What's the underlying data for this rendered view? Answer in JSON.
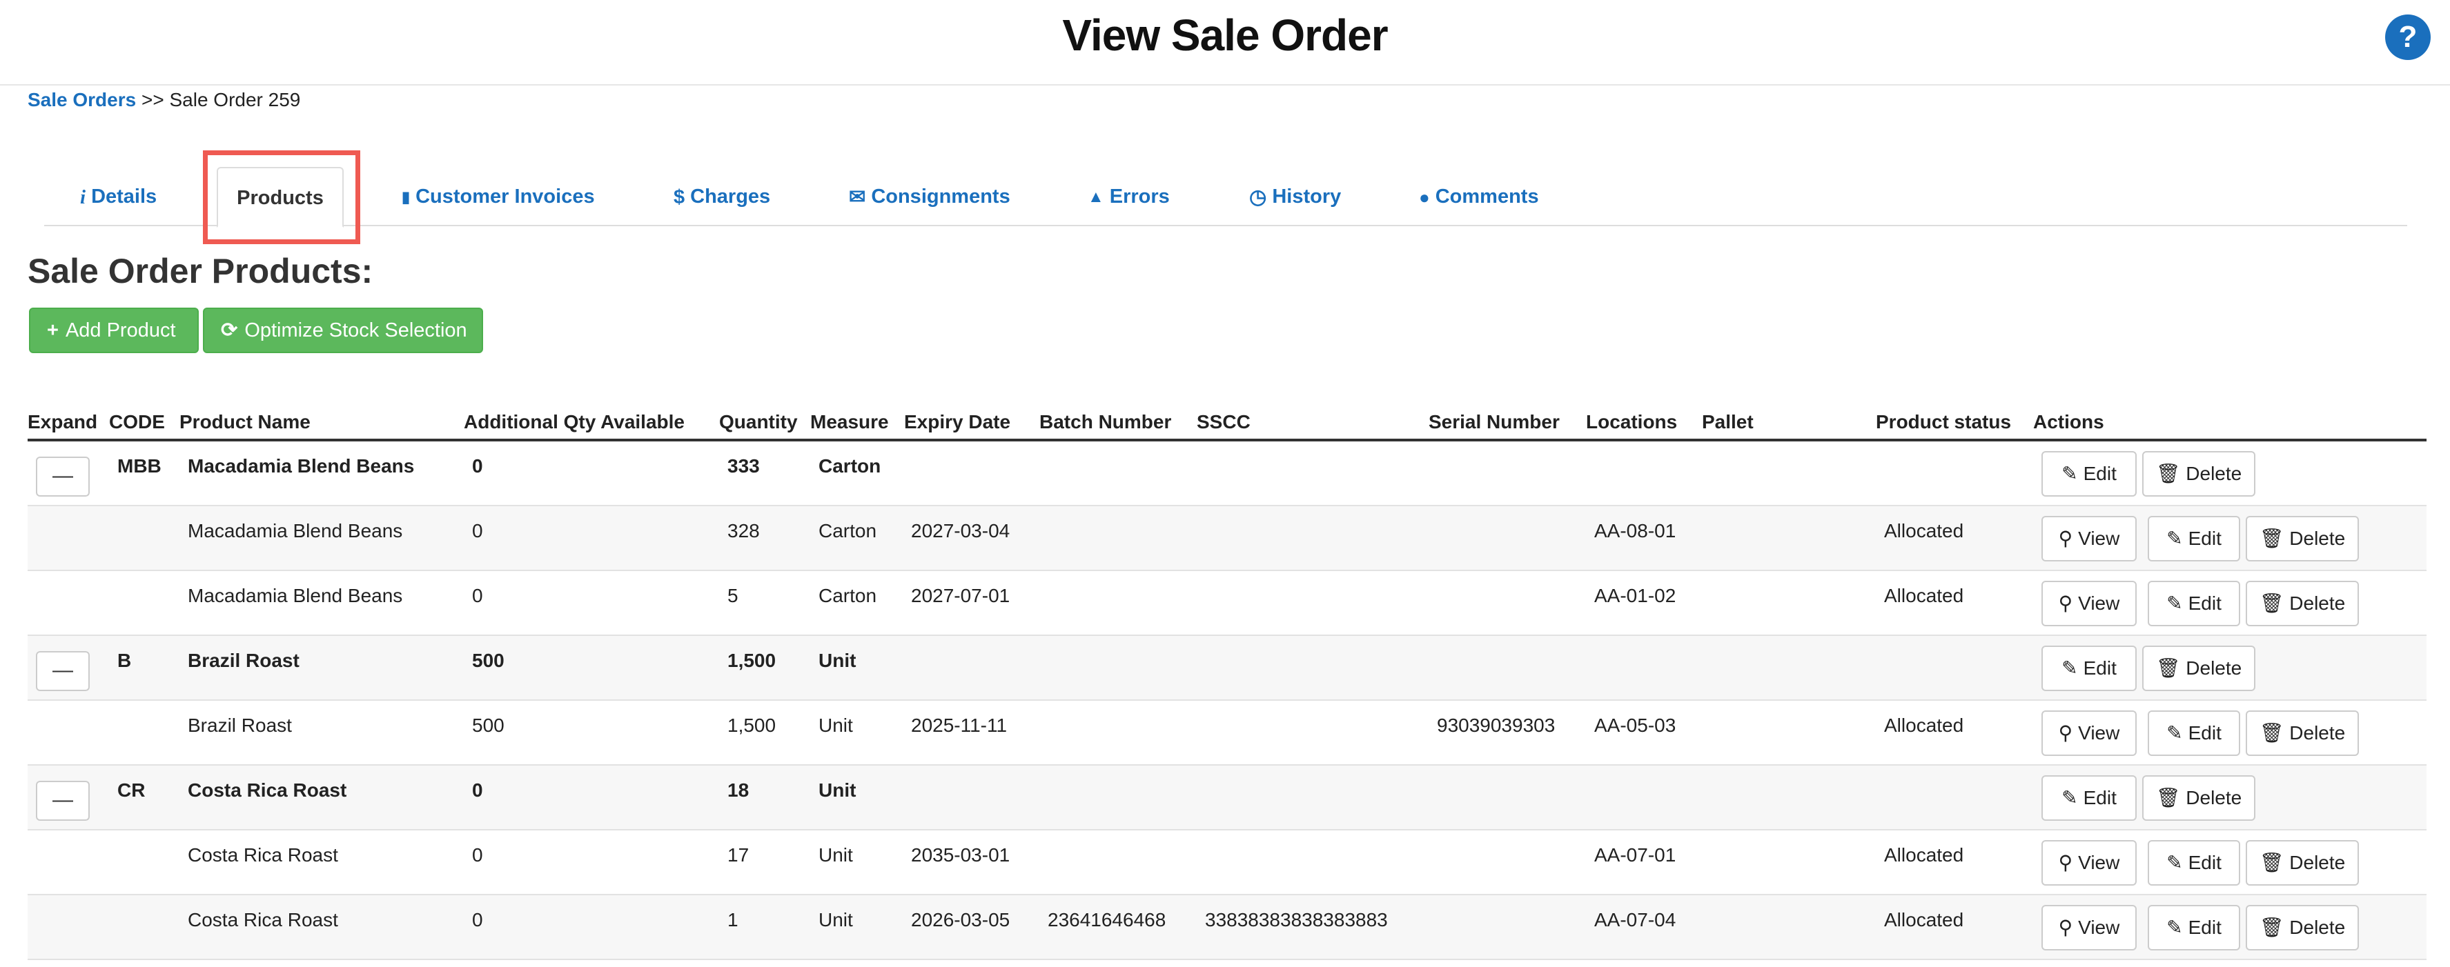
{
  "header": {
    "title": "View Sale Order",
    "help_label": "?"
  },
  "breadcrumb": {
    "link": "Sale Orders",
    "separator": ">>",
    "current": "Sale Order 259"
  },
  "tabs": [
    {
      "label": "Details",
      "icon": "info-icon",
      "glyph": "i"
    },
    {
      "label": "Products",
      "icon": "",
      "glyph": ""
    },
    {
      "label": "Customer Invoices",
      "icon": "file-icon",
      "glyph": "▮"
    },
    {
      "label": "Charges",
      "icon": "dollar-icon",
      "glyph": "$"
    },
    {
      "label": "Consignments",
      "icon": "envelope-icon",
      "glyph": "✉"
    },
    {
      "label": "Errors",
      "icon": "warning-icon",
      "glyph": "▲"
    },
    {
      "label": "History",
      "icon": "clock-icon",
      "glyph": "◷"
    },
    {
      "label": "Comments",
      "icon": "comment-icon",
      "glyph": "●"
    }
  ],
  "section_title": "Sale Order Products:",
  "toolbar": {
    "add_label": "Add Product",
    "add_icon": "plus-icon",
    "add_glyph": "+",
    "optimize_label": "Optimize Stock Selection",
    "optimize_icon": "refresh-icon",
    "optimize_glyph": "⟳"
  },
  "table": {
    "columns": [
      "Expand",
      "CODE",
      "Product Name",
      "Additional Qty Available",
      "Quantity",
      "Measure",
      "Expiry Date",
      "Batch Number",
      "SSCC",
      "Serial Number",
      "Locations",
      "Pallet",
      "Product status",
      "Actions"
    ],
    "expand_glyph": "—",
    "actions": {
      "view": "View",
      "edit": "Edit",
      "delete": "Delete",
      "view_icon": "search-icon",
      "edit_icon": "pencil-icon",
      "delete_icon": "trash-icon",
      "view_glyph": "⚲",
      "edit_glyph": "✎",
      "delete_glyph": "🗑"
    },
    "rows": [
      {
        "group": true,
        "code": "MBB",
        "name": "Macadamia Blend Beans",
        "addl": "0",
        "qty": "333",
        "measure": "Carton",
        "expiry": "",
        "batch": "",
        "sscc": "",
        "serial": "",
        "location": "",
        "pallet": "",
        "status": ""
      },
      {
        "group": false,
        "code": "",
        "name": "Macadamia Blend Beans",
        "addl": "0",
        "qty": "328",
        "measure": "Carton",
        "expiry": "2027-03-04",
        "batch": "",
        "sscc": "",
        "serial": "",
        "location": "AA-08-01",
        "pallet": "",
        "status": "Allocated"
      },
      {
        "group": false,
        "code": "",
        "name": "Macadamia Blend Beans",
        "addl": "0",
        "qty": "5",
        "measure": "Carton",
        "expiry": "2027-07-01",
        "batch": "",
        "sscc": "",
        "serial": "",
        "location": "AA-01-02",
        "pallet": "",
        "status": "Allocated"
      },
      {
        "group": true,
        "code": "B",
        "name": "Brazil Roast",
        "addl": "500",
        "qty": "1,500",
        "measure": "Unit",
        "expiry": "",
        "batch": "",
        "sscc": "",
        "serial": "",
        "location": "",
        "pallet": "",
        "status": ""
      },
      {
        "group": false,
        "code": "",
        "name": "Brazil Roast",
        "addl": "500",
        "qty": "1,500",
        "measure": "Unit",
        "expiry": "2025-11-11",
        "batch": "",
        "sscc": "",
        "serial": "93039039303",
        "location": "AA-05-03",
        "pallet": "",
        "status": "Allocated"
      },
      {
        "group": true,
        "code": "CR",
        "name": "Costa Rica Roast",
        "addl": "0",
        "qty": "18",
        "measure": "Unit",
        "expiry": "",
        "batch": "",
        "sscc": "",
        "serial": "",
        "location": "",
        "pallet": "",
        "status": ""
      },
      {
        "group": false,
        "code": "",
        "name": "Costa Rica Roast",
        "addl": "0",
        "qty": "17",
        "measure": "Unit",
        "expiry": "2035-03-01",
        "batch": "",
        "sscc": "",
        "serial": "",
        "location": "AA-07-01",
        "pallet": "",
        "status": "Allocated"
      },
      {
        "group": false,
        "code": "",
        "name": "Costa Rica Roast",
        "addl": "0",
        "qty": "1",
        "measure": "Unit",
        "expiry": "2026-03-05",
        "batch": "23641646468",
        "sscc": "33838383838383883",
        "serial": "",
        "location": "AA-07-04",
        "pallet": "",
        "status": "Allocated"
      }
    ]
  },
  "colors": {
    "link": "#1a6fbd",
    "success": "#5cb85c",
    "highlight": "#ef5a52"
  }
}
